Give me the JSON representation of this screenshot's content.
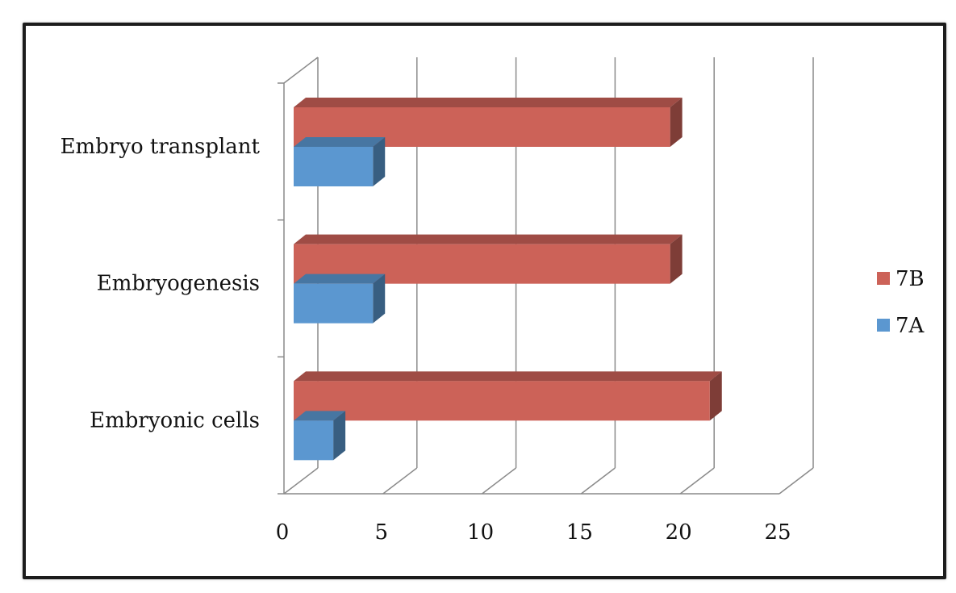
{
  "chart_data": {
    "type": "bar",
    "orientation": "horizontal",
    "three_d": true,
    "categories": [
      "Embryonic cells",
      "Embryogenesis",
      "Embryo transplant"
    ],
    "series": [
      {
        "name": "7A",
        "color": "#5b97d0",
        "values": [
          2,
          4,
          4
        ]
      },
      {
        "name": "7B",
        "color": "#cc6258",
        "values": [
          21,
          19,
          19
        ]
      }
    ],
    "x_ticks": [
      "0",
      "5",
      "10",
      "15",
      "20",
      "25"
    ],
    "xlim": [
      0,
      25
    ],
    "grid": true,
    "legend_position": "right",
    "legend_order": [
      "7B",
      "7A"
    ]
  }
}
